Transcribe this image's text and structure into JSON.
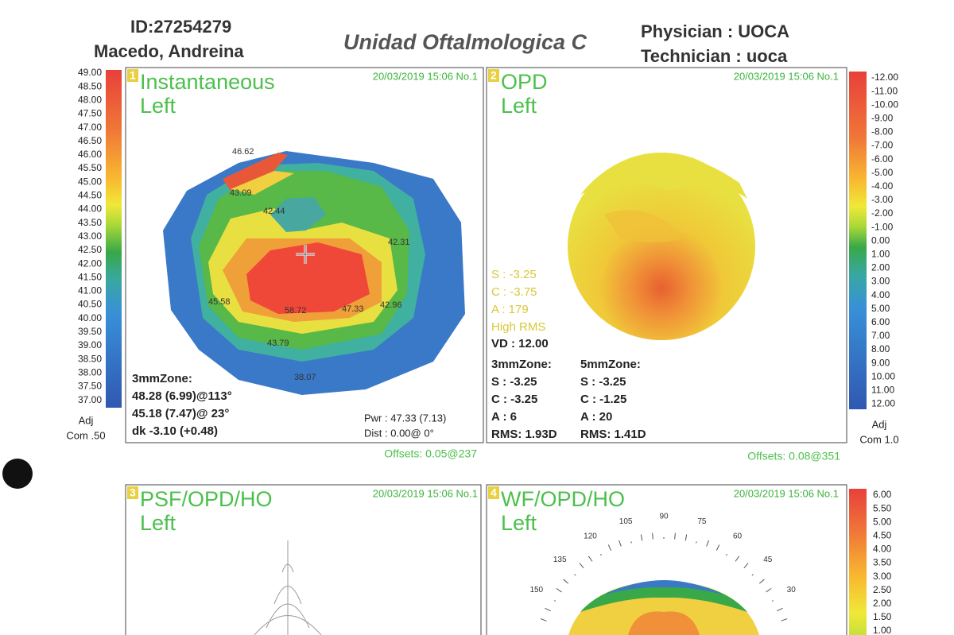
{
  "header": {
    "id": "ID:27254279",
    "name": "Macedo,  Andreina",
    "clinic": "Unidad  Oftalmologica C",
    "physician": "Physician : UOCA",
    "technician": "Technician : uoca"
  },
  "left_scale": {
    "labels": [
      "49.00",
      "48.50",
      "48.00",
      "47.50",
      "47.00",
      "46.50",
      "46.00",
      "45.50",
      "45.00",
      "44.50",
      "44.00",
      "43.50",
      "43.00",
      "42.50",
      "42.00",
      "41.50",
      "41.00",
      "40.50",
      "40.00",
      "39.50",
      "39.00",
      "38.50",
      "38.00",
      "37.50",
      "37.00"
    ],
    "adj": "Adj",
    "com": "Com .50"
  },
  "right_scale": {
    "labels": [
      "-12.00",
      "-11.00",
      "-10.00",
      "-9.00",
      "-8.00",
      "-7.00",
      "-6.00",
      "-5.00",
      "-4.00",
      "-3.00",
      "-2.00",
      "-1.00",
      "0.00",
      "1.00",
      "2.00",
      "3.00",
      "4.00",
      "5.00",
      "6.00",
      "7.00",
      "8.00",
      "9.00",
      "10.00",
      "11.00",
      "12.00"
    ],
    "adj": "Adj",
    "com": "Com 1.0"
  },
  "lower_scale": {
    "labels": [
      "6.00",
      "5.50",
      "5.00",
      "4.50",
      "4.00",
      "3.50",
      "3.00",
      "2.50",
      "2.00",
      "1.50",
      "1.00"
    ]
  },
  "panel1": {
    "number": "1",
    "title": "Instantaneous",
    "eye": "Left",
    "date": "20/03/2019 15:06 No.1",
    "map_labels": [
      "46.62",
      "43.09",
      "42.44",
      "42.31",
      "45.58",
      "58.72",
      "47.33",
      "42.96",
      "43.79",
      "38.07"
    ],
    "zone_title": "3mmZone:",
    "zone_lines": [
      "48.28 (6.99)@113°",
      "45.18 (7.47)@ 23°",
      "dk -3.10 (+0.48)"
    ],
    "pwr": "Pwr :  47.33 (7.13)",
    "dist": "Dist :  0.00@  0°",
    "offsets": "Offsets: 0.05@237"
  },
  "panel2": {
    "number": "2",
    "title": "OPD",
    "eye": "Left",
    "date": "20/03/2019 15:06 No.1",
    "refraction": [
      "S :  -3.25",
      "C :  -3.75",
      "A : 179",
      "High RMS"
    ],
    "vd": "VD : 12.00",
    "zone3": [
      "3mmZone:",
      "S :  -3.25",
      "C :  -3.25",
      "A :   6",
      "RMS: 1.93D"
    ],
    "zone5": [
      "5mmZone:",
      "S :  -3.25",
      "C :  -1.25",
      "A :  20",
      "RMS: 1.41D"
    ],
    "offsets": "Offsets: 0.08@351"
  },
  "panel3": {
    "number": "3",
    "title": "PSF/OPD/HO",
    "eye": "Left",
    "date": "20/03/2019 15:06 No.1"
  },
  "panel4": {
    "number": "4",
    "title": "WF/OPD/HO",
    "eye": "Left",
    "date": "20/03/2019 15:06 No.1",
    "angles": [
      90,
      105,
      75,
      120,
      60,
      135,
      45,
      150,
      30
    ]
  }
}
